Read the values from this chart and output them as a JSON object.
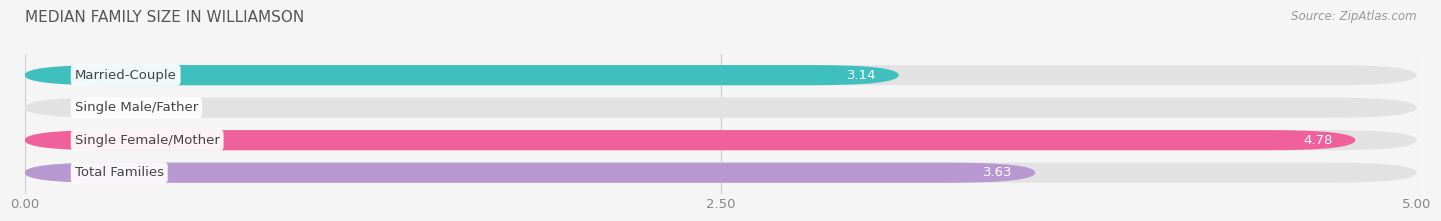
{
  "title": "MEDIAN FAMILY SIZE IN WILLIAMSON",
  "source": "Source: ZipAtlas.com",
  "categories": [
    "Married-Couple",
    "Single Male/Father",
    "Single Female/Mother",
    "Total Families"
  ],
  "values": [
    3.14,
    0.0,
    4.78,
    3.63
  ],
  "bar_colors": [
    "#40bfbf",
    "#a8b8e8",
    "#f0609a",
    "#b898d0"
  ],
  "background_color": "#f5f5f5",
  "bar_bg_color": "#e2e2e2",
  "xlim": [
    0,
    5.0
  ],
  "xtick_labels": [
    "0.00",
    "2.50",
    "5.00"
  ],
  "label_fontsize": 9.5,
  "value_fontsize": 9.5,
  "title_fontsize": 11,
  "source_fontsize": 8.5
}
